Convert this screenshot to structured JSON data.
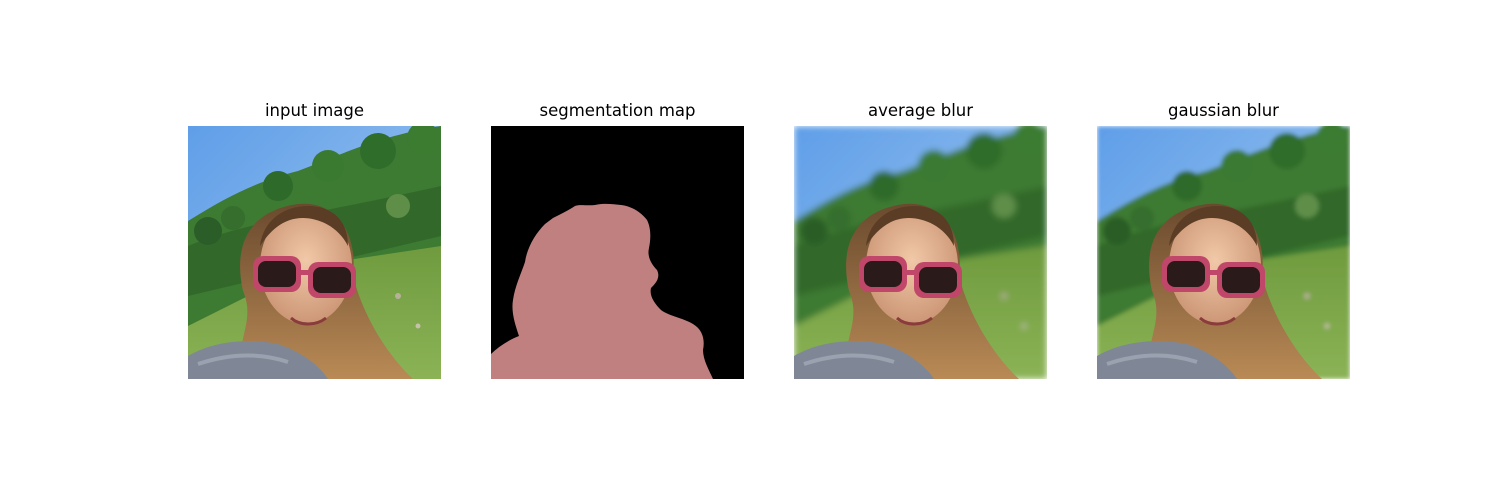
{
  "figure": {
    "panels": [
      {
        "title": "input image",
        "image": "photo-selfie"
      },
      {
        "title": "segmentation map",
        "image": "person-mask"
      },
      {
        "title": "average blur",
        "image": "photo-selfie-blurred-background"
      },
      {
        "title": "gaussian blur",
        "image": "photo-selfie-blurred-background"
      }
    ]
  },
  "colors": {
    "sky": "#7fb2ea",
    "hill": "#3d7a32",
    "grass": "#7fa64a",
    "mask_person": "#c08080",
    "mask_background": "#000000"
  }
}
